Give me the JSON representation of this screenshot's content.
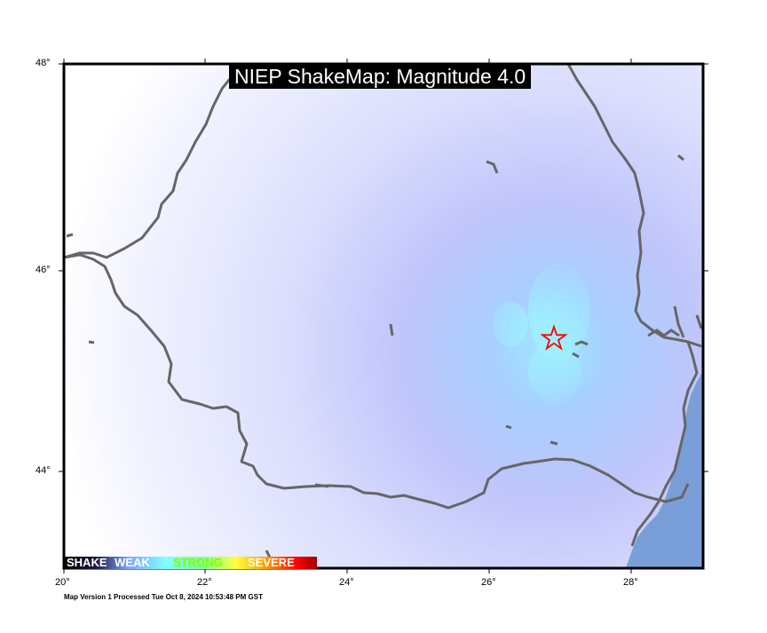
{
  "title": "NIEP ShakeMap: Magnitude 4.0",
  "footer": "Map Version 1 Processed Tue Oct  8, 2024 10:53:48 PM GST",
  "axes": {
    "lon_ticks": [
      "20°",
      "22°",
      "24°",
      "26°",
      "28°"
    ],
    "lat_ticks": [
      "48°",
      "46°",
      "44°"
    ]
  },
  "legend": {
    "labels": [
      "SHAKE",
      "WEAK",
      "STRONG",
      "SEVERE"
    ]
  },
  "epicenter": {
    "lon": 26.9,
    "lat": 45.3,
    "marker": "star-icon"
  },
  "colors": {
    "background_intensity": "#eef0ff",
    "weak_shaking": "#bfc6ff",
    "moderate_shaking": "#9fe8ff",
    "sea": "#7a9fd8",
    "border": "#666666",
    "epicenter": "#ff0000"
  }
}
